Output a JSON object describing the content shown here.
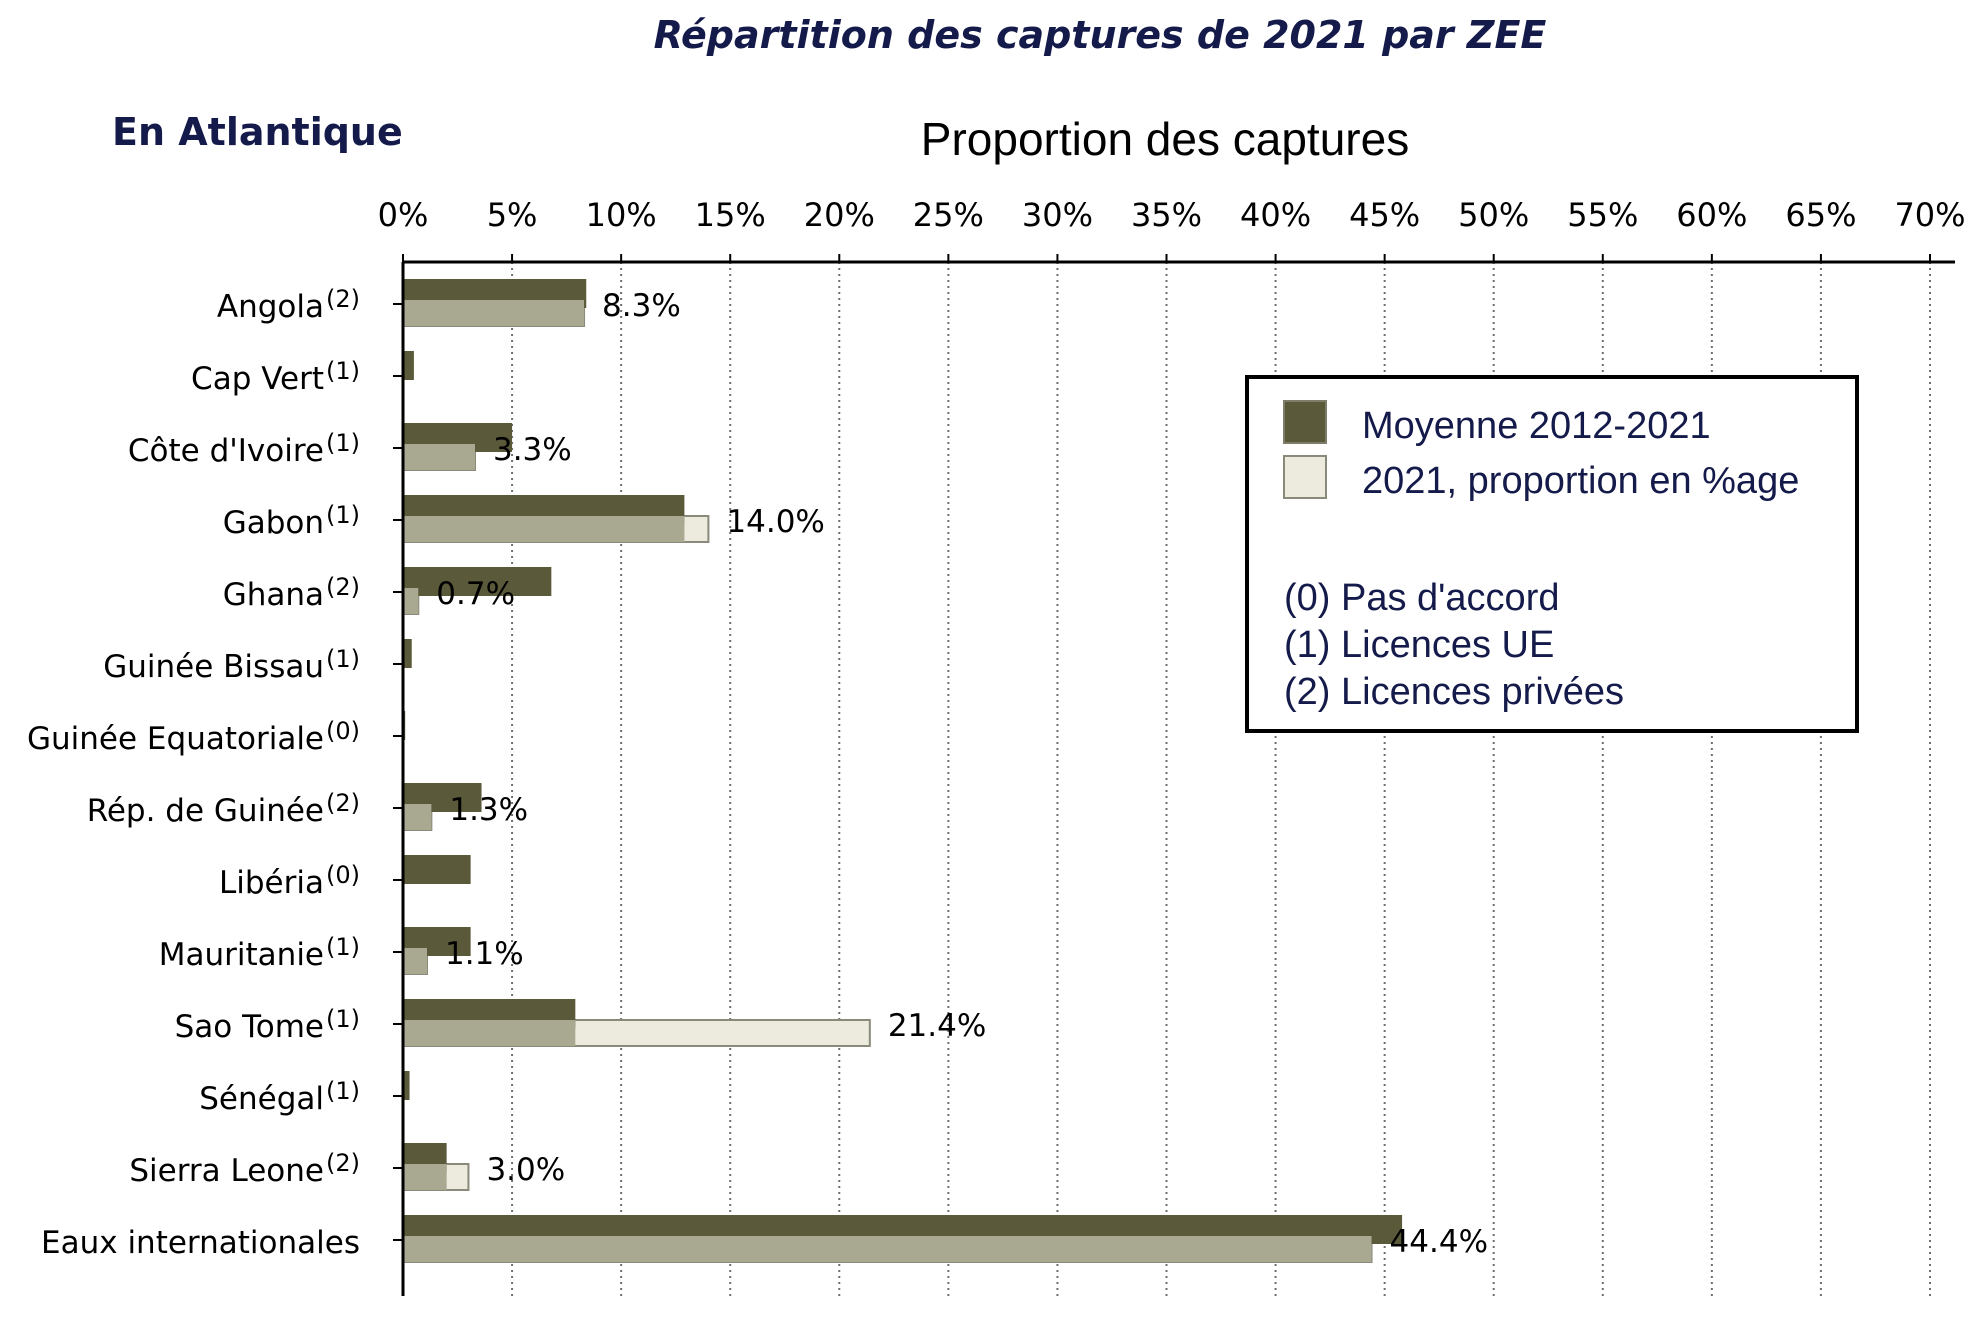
{
  "chart_data": {
    "type": "bar",
    "orientation": "horizontal",
    "title": "Répartition des captures de 2021 par ZEE",
    "subtitle": "En Atlantique",
    "xlabel": "Proportion des captures",
    "xlim": [
      0,
      70
    ],
    "xticks": [
      0,
      5,
      10,
      15,
      20,
      25,
      30,
      35,
      40,
      45,
      50,
      55,
      60,
      65,
      70
    ],
    "xtick_suffix": "%",
    "grid": "vertical dotted",
    "categories": [
      {
        "name": "Angola",
        "note": "(2)"
      },
      {
        "name": "Cap Vert",
        "note": "(1)"
      },
      {
        "name": "Côte d'Ivoire",
        "note": "(1)"
      },
      {
        "name": "Gabon",
        "note": "(1)"
      },
      {
        "name": "Ghana",
        "note": "(2)"
      },
      {
        "name": "Guinée Bissau",
        "note": "(1)"
      },
      {
        "name": "Guinée Equatoriale",
        "note": "(0)"
      },
      {
        "name": "Rép. de Guinée",
        "note": "(2)"
      },
      {
        "name": "Libéria",
        "note": "(0)"
      },
      {
        "name": "Mauritanie",
        "note": "(1)"
      },
      {
        "name": "Sao Tome",
        "note": "(1)"
      },
      {
        "name": "Sénégal",
        "note": "(1)"
      },
      {
        "name": "Sierra Leone",
        "note": "(2)"
      },
      {
        "name": "Eaux internationales",
        "note": ""
      }
    ],
    "series": [
      {
        "name": "Moyenne 2012-2021",
        "color": "#5a5a3a",
        "values": [
          8.4,
          0.5,
          5.0,
          12.9,
          6.8,
          0.4,
          0.1,
          3.6,
          3.1,
          3.1,
          7.9,
          0.3,
          2.0,
          45.8
        ]
      },
      {
        "name": "2021, proportion en %age",
        "color": "#ecebde",
        "values": [
          8.3,
          0,
          3.3,
          14.0,
          0.7,
          0,
          0,
          1.3,
          0,
          1.1,
          21.4,
          0,
          3.0,
          44.4
        ]
      }
    ],
    "data_labels": [
      "8.3%",
      "",
      "3.3%",
      "14.0%",
      "0.7%",
      "",
      "",
      "1.3%",
      "",
      "1.1%",
      "21.4%",
      "",
      "3.0%",
      "44.4%"
    ],
    "legend": {
      "placement": "right",
      "notes": [
        "(0) Pas d'accord",
        "(1) Licences UE",
        "(2) Licences privées"
      ]
    }
  }
}
